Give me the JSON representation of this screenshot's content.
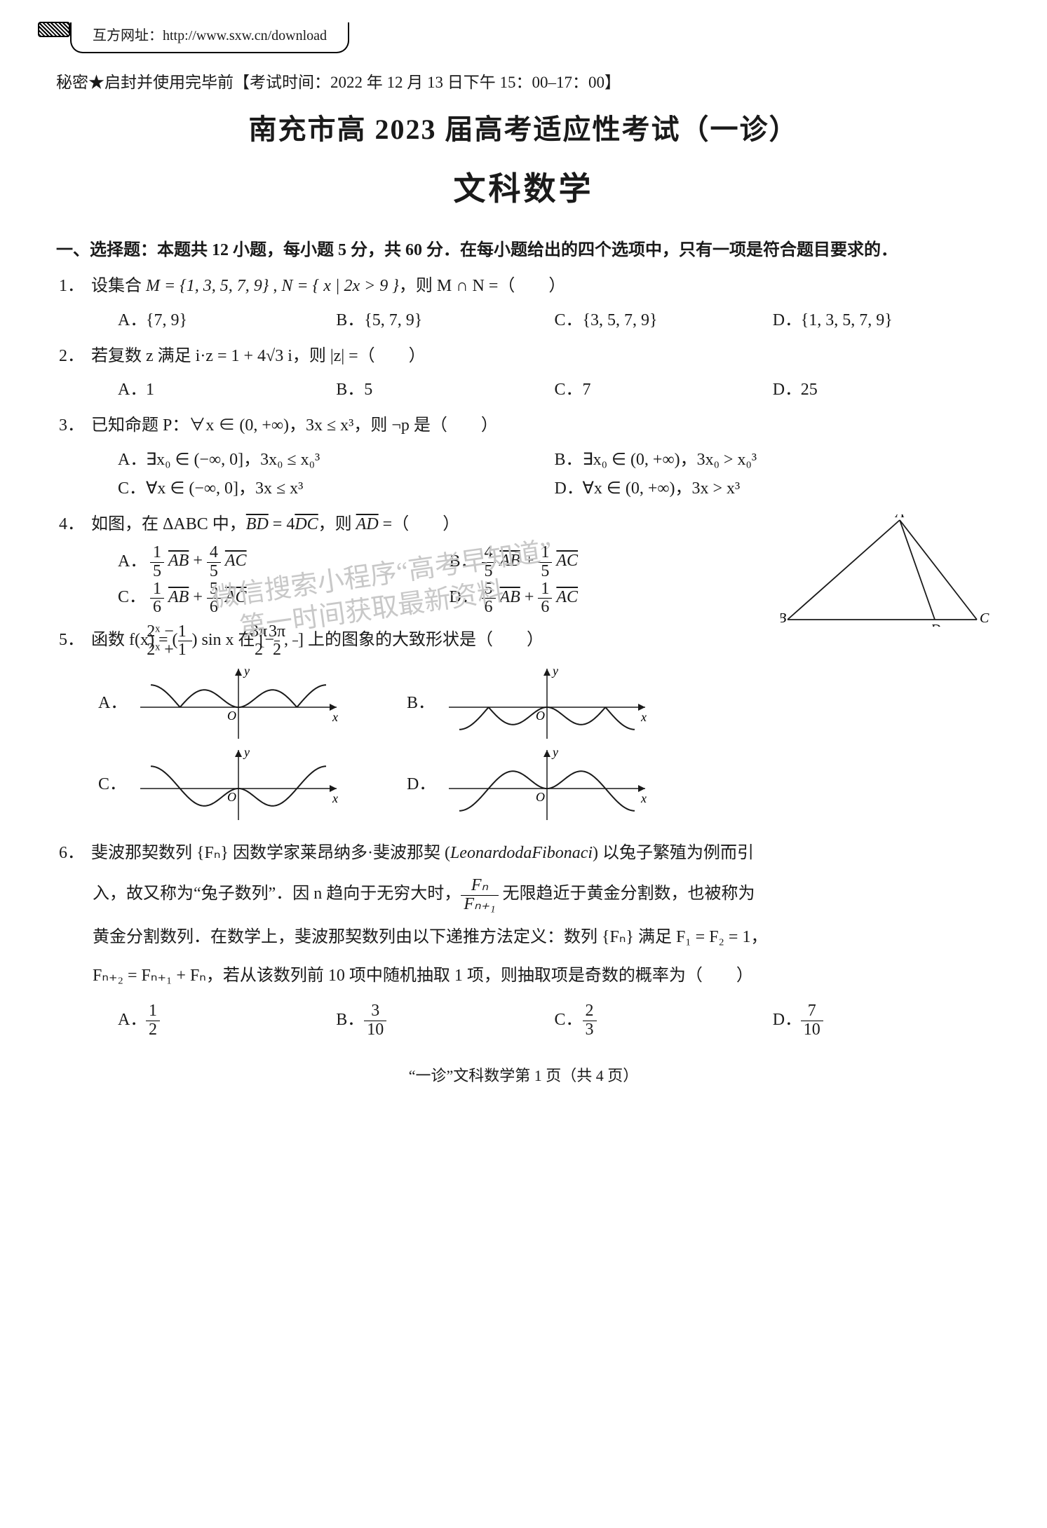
{
  "header": {
    "url_label": "互方网址：http://www.sxw.cn/download",
    "secrecy": "秘密★启封并使用完毕前【考试时间：2022 年 12 月 13 日下午 15：00–17：00】",
    "main_title": "南充市高 2023 届高考适应性考试（一诊）",
    "subject": "文科数学"
  },
  "section1": {
    "head_prefix": "一、",
    "head_text": "选择题：本题共 12 小题，每小题 5 分，共 60 分．在每小题给出的四个选项中，只有一项是符合题目要求的．"
  },
  "q1": {
    "num": "1．",
    "stem_pre": "设集合 ",
    "M": "M = {1, 3, 5, 7, 9}",
    "sep": " , ",
    "N": "N = { x | 2x > 9 }",
    "stem_post": "，则 M ∩ N =（　　）",
    "A": "{7, 9}",
    "B": "{5, 7, 9}",
    "C": "{3, 5, 7, 9}",
    "D": "{1, 3, 5, 7, 9}"
  },
  "q2": {
    "num": "2．",
    "stem_pre": "若复数 z 满足 i·z = 1 + 4√3 i，则 |z| =（　　）",
    "A": "1",
    "B": "5",
    "C": "7",
    "D": "25"
  },
  "q3": {
    "num": "3．",
    "stem": "已知命题 P：∀x ∈ (0, +∞)，3x ≤ x³，则 ¬p 是（　　）",
    "A": "∃x₀ ∈ (−∞, 0]，3x₀ ≤ x₀³",
    "B": "∃x₀ ∈ (0, +∞)，3x₀ > x₀³",
    "C": "∀x ∈ (−∞, 0]，3x ≤ x³",
    "D": "∀x ∈ (0, +∞)，3x > x³"
  },
  "q4": {
    "num": "4．",
    "stem_pre": "如图，在 ΔABC 中，",
    "stem_eq": " = 4",
    "stem_post": "，则 ",
    "stem_tail": " =（　　）",
    "A": {
      "a": "1",
      "b": "5",
      "c": "4",
      "d": "5"
    },
    "B": {
      "a": "4",
      "b": "5",
      "c": "1",
      "d": "5"
    },
    "C": {
      "a": "1",
      "b": "6",
      "c": "5",
      "d": "6"
    },
    "D": {
      "a": "5",
      "b": "6",
      "c": "1",
      "d": "6"
    },
    "triangle": {
      "A": [
        170,
        8
      ],
      "B": [
        10,
        150
      ],
      "D": [
        220,
        150
      ],
      "C": [
        280,
        150
      ],
      "stroke": "#1a1a1a"
    }
  },
  "q5": {
    "num": "5．",
    "stem_pre": "函数 f(x) = (",
    "f_num": "2ˣ − 1",
    "f_den": "2ˣ + 1",
    "stem_mid": ") sin x 在 [−",
    "dom_num": "3π",
    "dom_den": "2",
    "stem_mid2": " , ",
    "stem_post": "] 上的图象的大致形状是（　　）",
    "graphs": {
      "stroke": "#1a1a1a",
      "axis": "#1a1a1a",
      "background": "#ffffff",
      "axis_labels": {
        "x": "x",
        "y": "y",
        "O": "O"
      },
      "xrange": [
        -150,
        150
      ],
      "yrange": [
        -50,
        50
      ],
      "A": "even-pos",
      "B": "even-neg",
      "C": "odd-neg",
      "D": "odd-pos"
    }
  },
  "q6": {
    "num": "6．",
    "line1_pre": "斐波那契数列 {Fₙ} 因数学家莱昂纳多·斐波那契 (",
    "name_ital": "LeonardodaFibonaci",
    "line1_post": ") 以兔子繁殖为例而引",
    "line2_pre": "入，故又称为“兔子数列”．因 n 趋向于无穷大时，",
    "ratio_num": "Fₙ",
    "ratio_den": "Fₙ₊₁",
    "line2_post": " 无限趋近于黄金分割数，也被称为",
    "line3": "黄金分割数列．在数学上，斐波那契数列由以下递推方法定义：数列 {Fₙ} 满足 F₁ = F₂ = 1，",
    "line4": "Fₙ₊₂ = Fₙ₊₁ + Fₙ，若从该数列前 10 项中随机抽取 1 项，则抽取项是奇数的概率为（　　）",
    "A": {
      "n": "1",
      "d": "2"
    },
    "B": {
      "n": "3",
      "d": "10"
    },
    "C": {
      "n": "2",
      "d": "3"
    },
    "D": {
      "n": "7",
      "d": "10"
    }
  },
  "watermarks": {
    "w1": "微信搜索小程序“高考早知道”",
    "w2": "第一时间获取最新资料"
  },
  "footer": "“一诊”文科数学第 1 页（共 4 页）"
}
